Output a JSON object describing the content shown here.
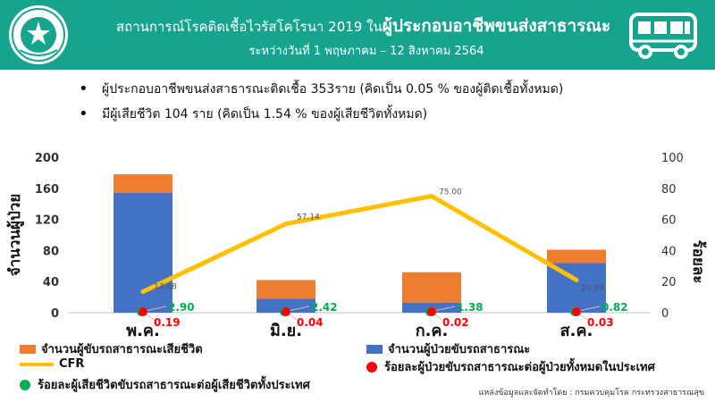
{
  "header": {
    "title_prefix": "สถานการณ์โรคติดเชื้อไวรัสโคโรนา 2019 ใน",
    "title_emphasis": "ผู้ประกอบอาชีพขนส่งสาธารณะ",
    "subtitle": "ระหว่างวันที่ 1 พฤษภาคม – 12 สิงหาคม 2564",
    "logo_icon": "ministry-of-public-health-seal",
    "transport_icon": "bus-icon",
    "bg_color": "#17a48f"
  },
  "bullets": [
    "ผู้ประกอบอาชีพขนส่งสาธารณะติดเชื้อ 353ราย (คิดเป็น 0.05 % ของผู้ติดเชื้อทั้งหมด)",
    "มีผู้เสียชีวิต 104 ราย (คิดเป็น 1.54 % ของผู้เสียชีวิตทั้งหมด)"
  ],
  "chart_data": {
    "type": "bar",
    "categories": [
      "พ.ค.",
      "มิ.ย.",
      "ก.ค.",
      "ส.ค."
    ],
    "series": [
      {
        "name": "จำนวนผู้ป่วยขับรถสาธารณะ",
        "type": "bar",
        "stack": "a",
        "axis": "left",
        "color": "#4472c4",
        "values": [
          154,
          18,
          13,
          64
        ]
      },
      {
        "name": "จำนวนผู้ขับรถสาธารณะเสียชีวิต",
        "type": "bar",
        "stack": "a",
        "axis": "left",
        "color": "#ed7d31",
        "values": [
          24,
          24,
          39,
          17
        ]
      },
      {
        "name": "CFR",
        "type": "line",
        "axis": "right",
        "color": "#ffc000",
        "values": [
          13.48,
          57.14,
          75.0,
          20.99
        ],
        "labels": [
          "13.48",
          "57.14",
          "75.00",
          "20.99"
        ]
      },
      {
        "name": "ร้อยละผู้ป่วยขับรถสาธารณะต่อผู้ป่วยทั้งหมดในประเทศ",
        "type": "marker",
        "axis": "left",
        "color": "#ff0000",
        "values": [
          0.19,
          0.04,
          0.02,
          0.03
        ],
        "labels": [
          "0.19",
          "0.04",
          "0.02",
          "0.03"
        ]
      },
      {
        "name": "ร้อยละผู้เสียชีวิตขับรถสาธารณะต่อผู้เสียชีวิตทั้งประเทศ",
        "type": "marker",
        "axis": "left",
        "color": "#00b050",
        "values": [
          2.9,
          2.42,
          1.38,
          0.82
        ],
        "labels": [
          "2.90",
          "2.42",
          "1.38",
          "0.82"
        ]
      }
    ],
    "ylabel": "จำนวนผู้ป่วย",
    "y2label": "ร้อยละ",
    "ylim": [
      0,
      200
    ],
    "yticks": [
      0,
      40,
      80,
      120,
      160,
      200
    ],
    "y2lim": [
      0,
      100
    ],
    "y2ticks": [
      0,
      20,
      40,
      60,
      80,
      100
    ],
    "grid": false,
    "legend_position": "bottom"
  },
  "legend": {
    "deaths": "จำนวนผู้ขับรถสาธารณะเสียชีวิต",
    "cases": "จำนวนผู้ป่วยขับรถสาธารณะ",
    "cfr": "CFR",
    "pct_cases": "ร้อยละผู้ป่วยขับรถสาธารณะต่อผู้ป่วยทั้งหมดในประเทศ",
    "pct_deaths": "ร้อยละผู้เสียชีวิตขับรถสาธารณะต่อผู้เสียชีวิตทั้งประเทศ"
  },
  "source": "แหล่งข้อมูลและจัดทำโดย : กรมควบคุมโรค กระทรวงสาธารณสุข"
}
